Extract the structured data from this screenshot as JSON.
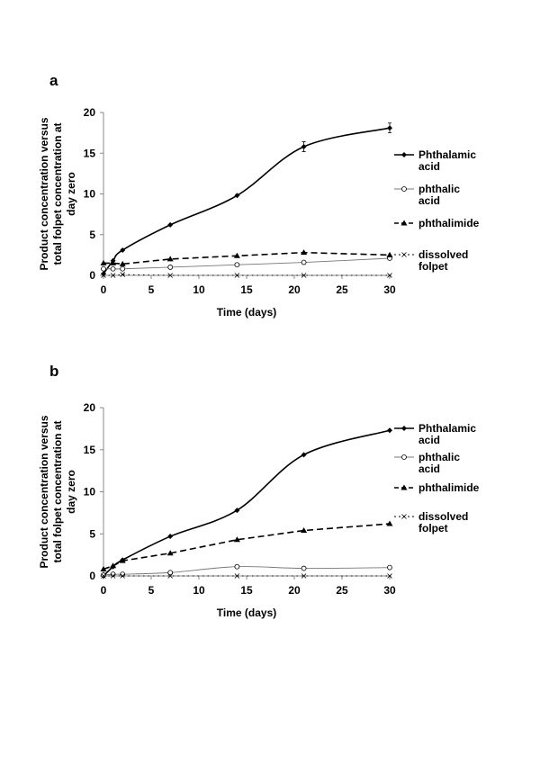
{
  "chart_data": [
    {
      "type": "line",
      "panel_label": "a",
      "xlabel": "Time (days)",
      "ylabel_lines": [
        "Product concentration versus",
        "total folpet concentration at",
        "day zero"
      ],
      "xlim": [
        0,
        30
      ],
      "ylim": [
        0,
        20
      ],
      "xticks": [
        "0",
        "5",
        "10",
        "15",
        "20",
        "25",
        "30"
      ],
      "yticks": [
        "0",
        "5",
        "10",
        "15",
        "20"
      ],
      "x": [
        0,
        1,
        2,
        7,
        14,
        21,
        30
      ],
      "legend_placement": "right",
      "series": [
        {
          "name": "Phthalamic acid",
          "legend_lines": [
            "Phthalamic",
            "acid"
          ],
          "values": [
            0.2,
            1.8,
            3.1,
            6.2,
            9.8,
            15.8,
            18.1
          ],
          "style": "solid-bold",
          "marker": "diamond"
        },
        {
          "name": "phthalic acid",
          "legend_lines": [
            "phthalic",
            "acid"
          ],
          "values": [
            0.8,
            0.8,
            0.8,
            1.0,
            1.3,
            1.6,
            2.1
          ],
          "style": "solid-thin",
          "marker": "circle-open"
        },
        {
          "name": "phthalimide",
          "legend_lines": [
            "phthalimide"
          ],
          "values": [
            1.5,
            1.5,
            1.4,
            2.0,
            2.4,
            2.8,
            2.5
          ],
          "style": "dashed",
          "marker": "triangle"
        },
        {
          "name": "dissolved folpet",
          "legend_lines": [
            "dissolved",
            "folpet"
          ],
          "values": [
            0,
            0,
            0.1,
            0,
            0,
            0,
            0
          ],
          "style": "dotted",
          "marker": "x"
        }
      ]
    },
    {
      "type": "line",
      "panel_label": "b",
      "xlabel": "Time (days)",
      "ylabel_lines": [
        "Product concentration versus",
        "total folpet concentration at",
        "day zero"
      ],
      "xlim": [
        0,
        30
      ],
      "ylim": [
        0,
        20
      ],
      "xticks": [
        "0",
        "5",
        "10",
        "15",
        "20",
        "25",
        "30"
      ],
      "yticks": [
        "0",
        "5",
        "10",
        "15",
        "20"
      ],
      "x": [
        0,
        1,
        2,
        7,
        14,
        21,
        30
      ],
      "legend_placement": "right",
      "series": [
        {
          "name": "Phthalamic acid",
          "legend_lines": [
            "Phthalamic",
            "acid"
          ],
          "values": [
            0.0,
            1.1,
            1.9,
            4.7,
            7.8,
            14.4,
            17.3
          ],
          "style": "solid-bold",
          "marker": "diamond"
        },
        {
          "name": "phthalic acid",
          "legend_lines": [
            "phthalic",
            "acid"
          ],
          "values": [
            0.1,
            0.2,
            0.2,
            0.4,
            1.1,
            0.9,
            1.0
          ],
          "style": "solid-thin",
          "marker": "circle-open"
        },
        {
          "name": "phthalimide",
          "legend_lines": [
            "phthalimide"
          ],
          "values": [
            0.8,
            1.2,
            1.8,
            2.7,
            4.3,
            5.4,
            6.2
          ],
          "style": "dashed",
          "marker": "triangle"
        },
        {
          "name": "dissolved folpet",
          "legend_lines": [
            "dissolved",
            "folpet"
          ],
          "values": [
            0,
            0,
            0,
            0,
            0,
            0,
            0
          ],
          "style": "dotted",
          "marker": "x"
        }
      ]
    }
  ]
}
